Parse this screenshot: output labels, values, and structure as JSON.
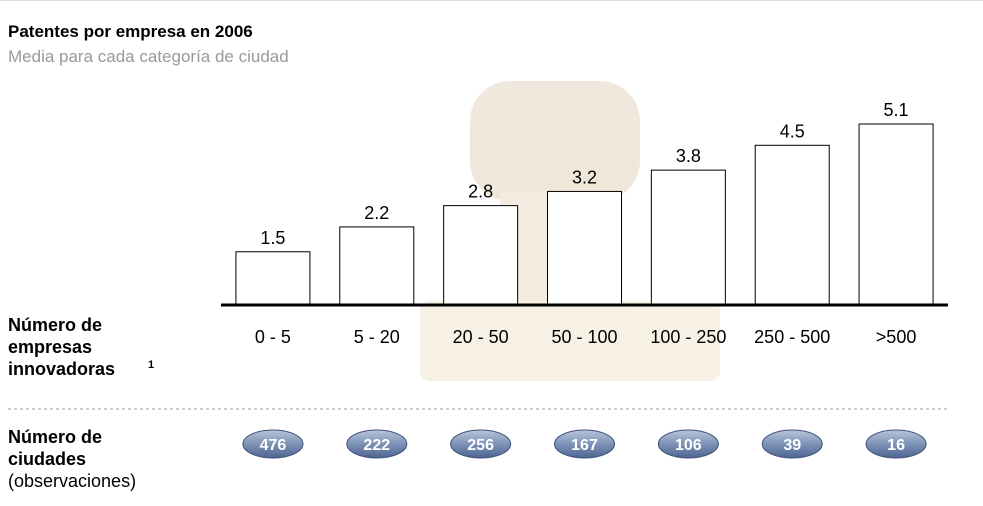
{
  "chart_data": {
    "type": "bar",
    "title": "Patentes por empresa en 2006",
    "subtitle": "Media para cada categoría de ciudad",
    "categories": [
      "0 - 5",
      "5 - 20",
      "20 - 50",
      "50 - 100",
      "100 - 250",
      "250 - 500",
      ">500"
    ],
    "values": [
      1.5,
      2.2,
      2.8,
      3.2,
      3.8,
      4.5,
      5.1
    ],
    "color": "#ffffff",
    "x_label": "Número de empresas innovadoras",
    "x_label_note": "1",
    "counts_label": "Número de ciudades",
    "counts_sublabel": "(observaciones)",
    "counts": [
      476,
      222,
      256,
      167,
      106,
      39,
      16
    ]
  }
}
